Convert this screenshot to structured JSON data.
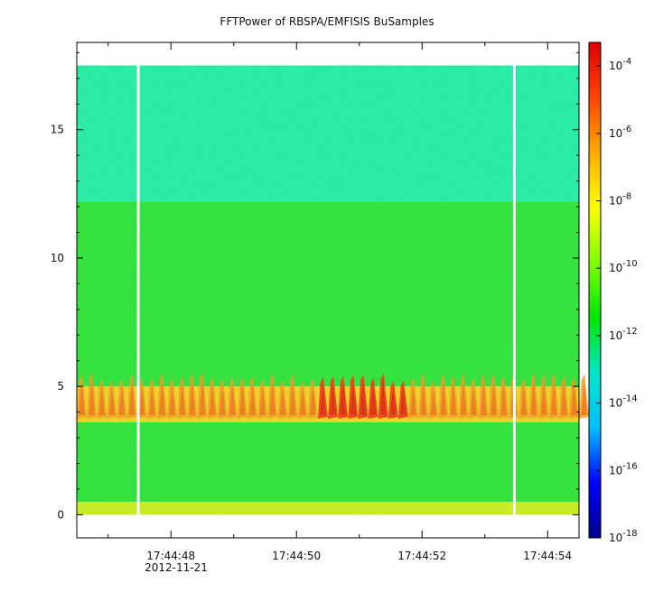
{
  "title": "FFTPower of RBSPA/EMFISIS  BuSamples",
  "chart_data": {
    "type": "heatmap",
    "title": "FFTPower of RBSPA/EMFISIS  BuSamples",
    "xlabel": "",
    "ylabel": "",
    "x_date_label": "2012-11-21",
    "x_ticks": [
      {
        "label": "17:44:48",
        "t": 48
      },
      {
        "label": "17:44:50",
        "t": 50
      },
      {
        "label": "17:44:52",
        "t": 52
      },
      {
        "label": "17:44:54",
        "t": 54
      }
    ],
    "x_minor_ticks_s": [
      47,
      49,
      51,
      53
    ],
    "xlim_s": [
      46.5,
      54.5
    ],
    "y_ticks": [
      0,
      5,
      10,
      15
    ],
    "ylim": [
      -0.9,
      18.4
    ],
    "data_top": 17.5,
    "data_x_range_s": [
      46.5,
      54.5
    ],
    "data_gaps_s": [
      47.48,
      53.47
    ],
    "bands": [
      {
        "from": 0.0,
        "to": 0.5,
        "level": "1e-9"
      },
      {
        "from": 0.5,
        "to": 3.6,
        "level": "1e-10"
      },
      {
        "from": 3.6,
        "to": 5.0,
        "level": "1e-8 to 1e-5"
      },
      {
        "from": 5.0,
        "to": 12.2,
        "level": "1e-10"
      },
      {
        "from": 12.2,
        "to": 17.5,
        "level": "1e-12"
      }
    ],
    "colorbar": {
      "scale": "log",
      "range_exp": [
        -18,
        -3.3
      ],
      "tick_exponents": [
        -18,
        -16,
        -14,
        -12,
        -10,
        -8,
        -6,
        -4
      ],
      "base_label": "10",
      "colors": [
        "#00008b",
        "#0000ff",
        "#00bfff",
        "#00e5c8",
        "#00e600",
        "#7fff00",
        "#ffff00",
        "#ffaa00",
        "#ff4400",
        "#dd0000"
      ]
    },
    "grid": false
  }
}
